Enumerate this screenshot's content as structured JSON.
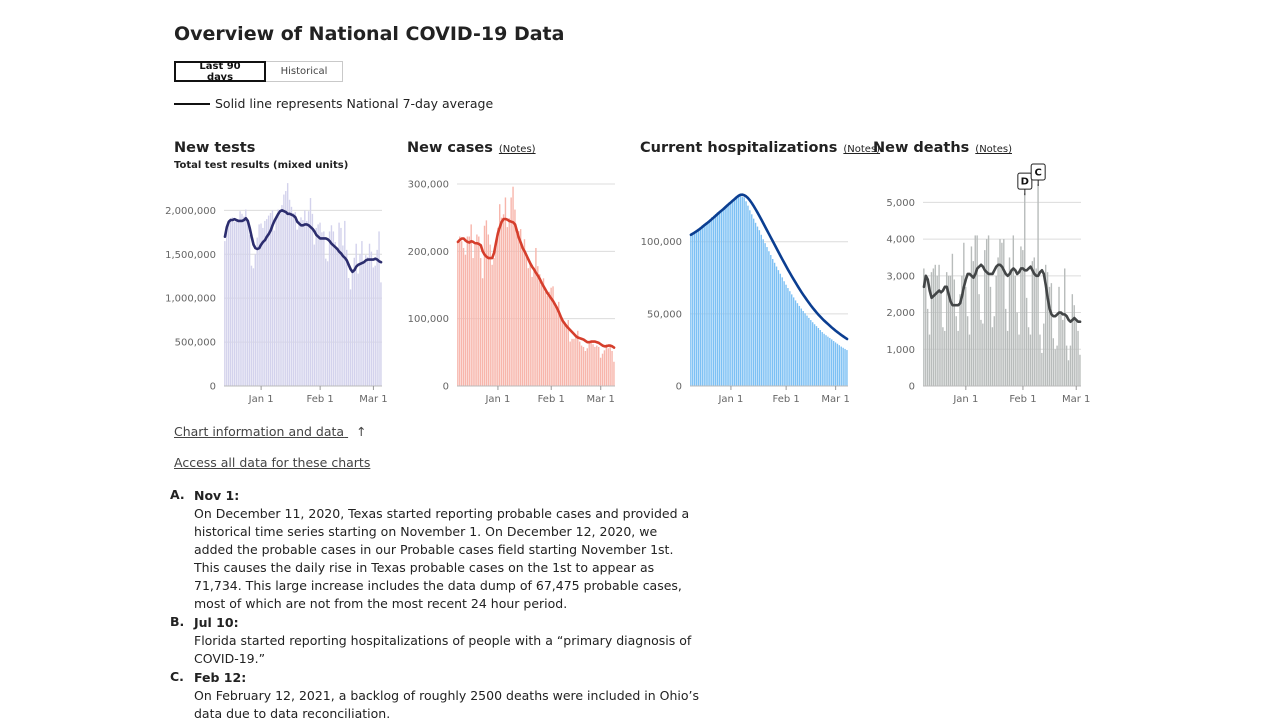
{
  "page_title": "Overview of National COVID-19 Data",
  "tabs": [
    "Last 90 days",
    "Historical"
  ],
  "legend_text": "Solid line represents National 7-day average",
  "links": {
    "chart_info": "Chart information and data",
    "chart_info_arrow": "↑",
    "access_data": "Access all data for these charts"
  },
  "notes_link_label": "(Notes)",
  "notes": [
    {
      "letter": "A.",
      "heading": "Nov 1:",
      "body": "On December 11, 2020, Texas started reporting probable cases and provided a historical time series starting on November 1. On December 12, 2020, we added the probable cases in our Probable cases field starting November 1st. This causes the daily rise in Texas probable cases on the 1st to appear as 71,734. This large increase includes the data dump of 67,475 probable cases, most of which are not from the most recent 24 hour period."
    },
    {
      "letter": "B.",
      "heading": "Jul 10:",
      "body": "Florida started reporting hospitalizations of people with a “primary diagnosis of COVID-19.”"
    },
    {
      "letter": "C.",
      "heading": "Feb 12:",
      "body": "On February 12, 2021, a backlog of roughly 2500 deaths were included in Ohio’s data due to data reconciliation."
    }
  ],
  "chart_data": [
    {
      "type": "bar",
      "title": "New tests",
      "subtitle": "Total test results (mixed units)",
      "x_tick_labels": [
        "Jan 1",
        "Feb 1",
        "Mar 1"
      ],
      "y_ticks": [
        "0",
        "500,000",
        "1,000,000",
        "1,500,000",
        "2,000,000"
      ],
      "y_tick_values": [
        0,
        500000,
        1000000,
        1500000,
        2000000
      ],
      "ylim": [
        0,
        2300000
      ],
      "x_ticks_index": [
        19,
        50,
        78
      ],
      "colors": {
        "bar": "#d3d2ec",
        "line": "#2c2d6e"
      },
      "values": [
        1650000,
        1780000,
        1890000,
        1910000,
        1920000,
        1870000,
        1900000,
        1900000,
        1990000,
        1960000,
        1930000,
        2010000,
        1860000,
        1720000,
        1370000,
        1340000,
        1500000,
        1690000,
        1840000,
        1850000,
        1800000,
        1880000,
        1900000,
        1940000,
        1970000,
        2000000,
        1770000,
        1930000,
        2010000,
        1960000,
        2060000,
        2180000,
        2220000,
        2310000,
        2120000,
        2040000,
        1970000,
        1980000,
        1780000,
        1880000,
        1920000,
        1890000,
        2000000,
        1880000,
        1990000,
        2140000,
        1960000,
        1610000,
        1800000,
        1840000,
        1860000,
        1750000,
        1760000,
        1450000,
        1420000,
        1760000,
        1830000,
        1760000,
        1640000,
        1570000,
        1860000,
        1800000,
        1600000,
        1880000,
        1550000,
        1230000,
        1100000,
        1320000,
        1460000,
        1620000,
        1280000,
        1500000,
        1650000,
        1400000,
        1490000,
        1470000,
        1620000,
        1530000,
        1350000,
        1370000,
        1550000,
        1760000,
        1180000
      ],
      "avg": [
        1700000,
        1810000,
        1870000,
        1890000,
        1890000,
        1900000,
        1890000,
        1880000,
        1880000,
        1880000,
        1890000,
        1910000,
        1880000,
        1800000,
        1700000,
        1610000,
        1570000,
        1560000,
        1570000,
        1610000,
        1640000,
        1660000,
        1700000,
        1730000,
        1770000,
        1830000,
        1880000,
        1920000,
        1960000,
        1990000,
        2000000,
        1990000,
        1980000,
        1960000,
        1960000,
        1950000,
        1940000,
        1920000,
        1870000,
        1850000,
        1830000,
        1830000,
        1840000,
        1840000,
        1830000,
        1810000,
        1790000,
        1760000,
        1720000,
        1700000,
        1680000,
        1680000,
        1680000,
        1680000,
        1670000,
        1650000,
        1620000,
        1600000,
        1580000,
        1560000,
        1530000,
        1510000,
        1480000,
        1460000,
        1430000,
        1380000,
        1330000,
        1300000,
        1320000,
        1360000,
        1380000,
        1390000,
        1400000,
        1410000,
        1430000,
        1440000,
        1440000,
        1440000,
        1440000,
        1450000,
        1440000,
        1420000,
        1410000
      ]
    },
    {
      "type": "bar",
      "title": "New cases",
      "x_tick_labels": [
        "Jan 1",
        "Feb 1",
        "Mar 1"
      ],
      "y_ticks": [
        "0",
        "100,000",
        "200,000",
        "300,000"
      ],
      "y_tick_values": [
        0,
        100000,
        200000,
        300000
      ],
      "ylim": [
        0,
        300000
      ],
      "x_ticks_index": [
        21,
        49,
        75
      ],
      "colors": {
        "bar": "#f7b5ab",
        "line": "#d53e2c"
      },
      "values": [
        215000,
        222000,
        215000,
        205000,
        195000,
        222000,
        222000,
        240000,
        190000,
        210000,
        225000,
        222000,
        190000,
        160000,
        238000,
        246000,
        225000,
        210000,
        180000,
        190000,
        212000,
        235000,
        270000,
        250000,
        255000,
        280000,
        236000,
        249000,
        280000,
        296000,
        262000,
        226000,
        230000,
        233000,
        205000,
        218000,
        192000,
        175000,
        180000,
        162000,
        176000,
        205000,
        178000,
        166000,
        150000,
        160000,
        140000,
        134000,
        140000,
        146000,
        148000,
        120000,
        115000,
        125000,
        105000,
        99000,
        95000,
        92000,
        98000,
        66000,
        70000,
        70000,
        76000,
        82000,
        66000,
        60000,
        58000,
        52000,
        56000,
        63000,
        66000,
        62000,
        58000,
        60000,
        58000,
        42000,
        48000,
        53000,
        62000,
        56000,
        60000,
        52000,
        36000
      ],
      "avg": [
        214000,
        217000,
        219000,
        219000,
        216000,
        214000,
        213000,
        215000,
        214000,
        212000,
        212000,
        211000,
        209000,
        200000,
        195000,
        192000,
        190000,
        190000,
        190000,
        198000,
        213000,
        227000,
        236000,
        244000,
        248000,
        248000,
        247000,
        245000,
        244000,
        243000,
        240000,
        230000,
        220000,
        213000,
        205000,
        200000,
        194000,
        188000,
        182000,
        177000,
        173000,
        168000,
        164000,
        159000,
        153000,
        148000,
        143000,
        138000,
        134000,
        130000,
        126000,
        121000,
        116000,
        110000,
        103000,
        97000,
        93000,
        89000,
        86000,
        83000,
        80000,
        77000,
        74000,
        72000,
        71000,
        70000,
        69000,
        67000,
        65000,
        65000,
        66000,
        66000,
        66000,
        65000,
        64000,
        62000,
        60000,
        59000,
        59000,
        60000,
        60000,
        59000,
        57000
      ]
    },
    {
      "type": "bar",
      "title": "Current hospitalizations",
      "x_tick_labels": [
        "Jan 1",
        "Feb 1",
        "Mar 1"
      ],
      "y_ticks": [
        "0",
        "50,000",
        "100,000"
      ],
      "y_tick_values": [
        0,
        50000,
        100000
      ],
      "ylim": [
        0,
        140000
      ],
      "x_ticks_index": [
        21,
        50,
        76
      ],
      "colors": {
        "bar": "#7cc0f4",
        "line": "#0b3e91"
      },
      "values": [
        105500,
        106300,
        107200,
        108100,
        109000,
        110100,
        111400,
        112300,
        113200,
        114300,
        115600,
        116900,
        118000,
        119200,
        120400,
        121200,
        122300,
        123400,
        124600,
        125700,
        126800,
        127800,
        128900,
        130100,
        131400,
        132000,
        131600,
        131100,
        130800,
        128000,
        125000,
        121800,
        119000,
        116000,
        113100,
        110500,
        108000,
        104800,
        101700,
        99000,
        96300,
        93400,
        90800,
        88000,
        85400,
        82800,
        80300,
        77800,
        75300,
        72600,
        70200,
        67900,
        65700,
        63500,
        61400,
        59300,
        57400,
        55500,
        53700,
        52000,
        50400,
        48800,
        47200,
        45700,
        44200,
        42800,
        41500,
        40200,
        38800,
        37400,
        36200,
        35200,
        34200,
        33300,
        32300,
        31200,
        30200,
        29300,
        28300,
        27300,
        26500,
        25700,
        24900
      ],
      "avg": [
        104800,
        105600,
        106400,
        107300,
        108200,
        109200,
        110300,
        111400,
        112400,
        113400,
        114500,
        115700,
        116800,
        118000,
        119200,
        120400,
        121500,
        122600,
        123800,
        125000,
        126200,
        127300,
        128500,
        129600,
        130800,
        131800,
        132500,
        132600,
        132200,
        131400,
        130200,
        128600,
        126700,
        124600,
        122400,
        120100,
        117700,
        115300,
        112800,
        110300,
        107800,
        105300,
        102800,
        100300,
        97800,
        95300,
        92800,
        90300,
        87800,
        85400,
        83000,
        80600,
        78300,
        76000,
        73800,
        71600,
        69400,
        67300,
        65200,
        63200,
        61300,
        59400,
        57600,
        55800,
        54100,
        52500,
        50900,
        49400,
        48000,
        46600,
        45300,
        44100,
        42900,
        41700,
        40500,
        39400,
        38300,
        37300,
        36300,
        35300,
        34400,
        33500,
        32600
      ]
    },
    {
      "type": "bar",
      "title": "New deaths",
      "x_tick_labels": [
        "Jan 1",
        "Feb 1",
        "Mar 1"
      ],
      "y_ticks": [
        "0",
        "1,000",
        "2,000",
        "3,000",
        "4,000",
        "5,000"
      ],
      "y_tick_values": [
        0,
        1000,
        2000,
        3000,
        4000,
        5000
      ],
      "ylim": [
        0,
        5500
      ],
      "x_ticks_index": [
        22,
        52,
        80
      ],
      "annotations": [
        {
          "label": "D",
          "index": 53,
          "value": 5250
        },
        {
          "label": "C",
          "index": 60,
          "value": 5500
        }
      ],
      "colors": {
        "bar": "#b8bcbb",
        "line": "#434647"
      },
      "values": [
        3200,
        3000,
        2100,
        1400,
        3100,
        3200,
        3300,
        3000,
        3300,
        2600,
        1600,
        1500,
        3100,
        3000,
        3000,
        3600,
        2900,
        1900,
        1500,
        2500,
        3000,
        3900,
        2700,
        1900,
        1400,
        3800,
        3400,
        4100,
        4100,
        2500,
        1800,
        1700,
        3700,
        4000,
        4100,
        2700,
        1600,
        1900,
        3000,
        3500,
        4000,
        3900,
        4000,
        2100,
        1500,
        3500,
        3100,
        4100,
        3000,
        2000,
        1400,
        3800,
        3700,
        5250,
        2400,
        1600,
        1400,
        3400,
        3500,
        3200,
        5500,
        1400,
        900,
        1700,
        3300,
        3100,
        2700,
        2800,
        1300,
        1000,
        1100,
        2700,
        2000,
        1800,
        3200,
        1100,
        700,
        1100,
        2500,
        2200,
        1800,
        1500,
        850
      ],
      "avg": [
        2700,
        3000,
        2900,
        2600,
        2400,
        2450,
        2500,
        2550,
        2600,
        2550,
        2600,
        2700,
        2700,
        2500,
        2300,
        2200,
        2200,
        2200,
        2200,
        2250,
        2450,
        2700,
        2900,
        3050,
        3050,
        3000,
        2950,
        3050,
        3200,
        3250,
        3300,
        3250,
        3150,
        3100,
        3050,
        3050,
        3050,
        3150,
        3250,
        3300,
        3300,
        3250,
        3150,
        3050,
        3000,
        3050,
        3150,
        3200,
        3150,
        3050,
        3100,
        3200,
        3200,
        3150,
        3150,
        3200,
        3250,
        3150,
        3050,
        3000,
        3000,
        3100,
        3150,
        3050,
        2750,
        2400,
        2100,
        1950,
        1900,
        1900,
        1950,
        2000,
        2000,
        1950,
        1950,
        1900,
        1800,
        1750,
        1800,
        1850,
        1800,
        1750,
        1750
      ]
    }
  ]
}
